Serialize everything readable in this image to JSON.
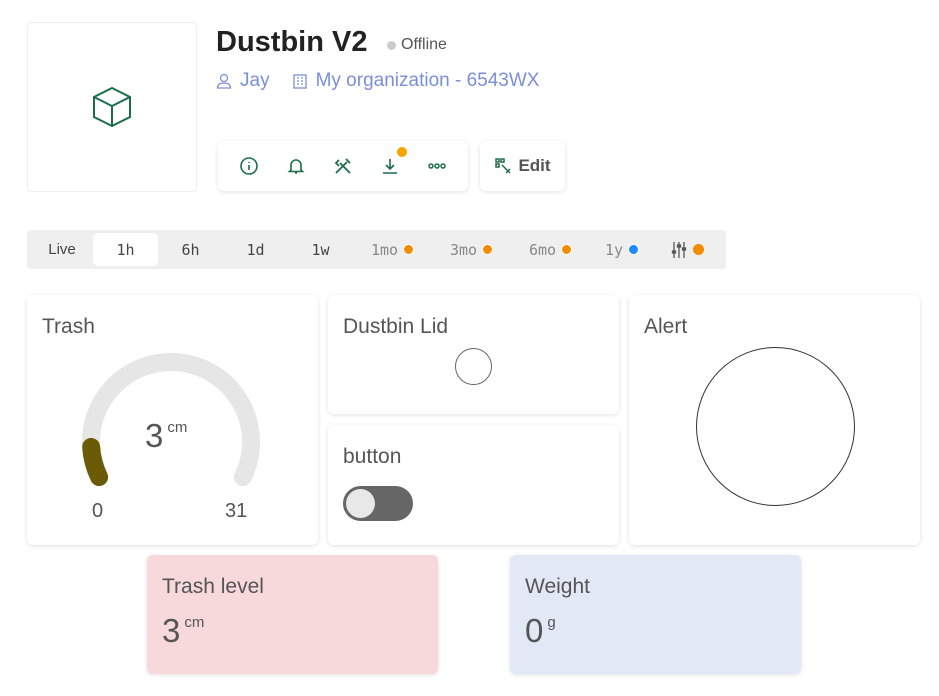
{
  "device": {
    "title": "Dustbin V2",
    "status": "Offline",
    "status_color": "#cccccc",
    "owner": "Jay",
    "organization": "My organization - 6543WX",
    "thumbnail_icon": "cube-icon"
  },
  "toolbar": {
    "icons": [
      "info-icon",
      "bell-icon",
      "tools-icon",
      "download-icon",
      "more-icon"
    ],
    "download_badge_color": "#f5a300",
    "edit_label": "Edit"
  },
  "time_range": {
    "items": [
      {
        "label": "Live",
        "active": false,
        "dot": null
      },
      {
        "label": "1h",
        "active": true,
        "dot": null
      },
      {
        "label": "6h",
        "active": false,
        "dot": null
      },
      {
        "label": "1d",
        "active": false,
        "dot": null
      },
      {
        "label": "1w",
        "active": false,
        "dot": null
      },
      {
        "label": "1mo",
        "active": false,
        "dot": "#f08c00"
      },
      {
        "label": "3mo",
        "active": false,
        "dot": "#f08c00"
      },
      {
        "label": "6mo",
        "active": false,
        "dot": "#f08c00"
      },
      {
        "label": "1y",
        "active": false,
        "dot": "#1e88ff"
      }
    ],
    "settings_dot": "#f08c00"
  },
  "widgets": {
    "trash": {
      "title": "Trash",
      "value": "3",
      "unit": "cm",
      "min": "0",
      "max": "31",
      "value_num": 3,
      "min_num": 0,
      "max_num": 31,
      "fill_color": "#6b5a06",
      "track_color": "#e6e6e6"
    },
    "lid": {
      "title": "Dustbin Lid",
      "state": "off"
    },
    "button": {
      "title": "button",
      "toggle_on": false
    },
    "alert": {
      "title": "Alert",
      "state": "off"
    },
    "trash_level": {
      "title": "Trash level",
      "value": "3",
      "unit": "cm",
      "bg": "#f8d9db"
    },
    "weight": {
      "title": "Weight",
      "value": "0",
      "unit": "g",
      "bg": "#e3e8f6"
    }
  }
}
